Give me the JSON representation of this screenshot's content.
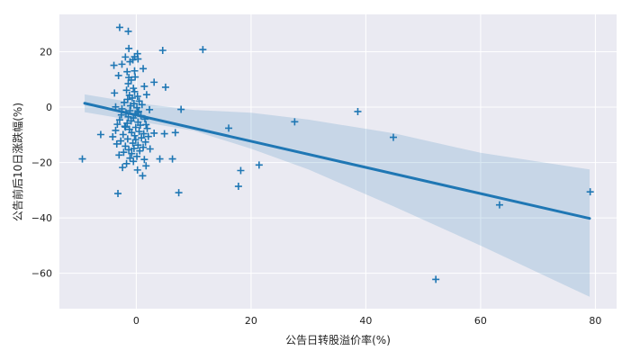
{
  "chart_data": {
    "type": "scatter",
    "title": "",
    "xlabel": "公告日转股溢价率(%)",
    "ylabel": "公告前后10日涨跌幅(%)",
    "xlim": [
      -13.4,
      83.7
    ],
    "ylim": [
      -72.8,
      33.5
    ],
    "xticks": [
      0,
      20,
      40,
      60,
      80
    ],
    "yticks": [
      20,
      0,
      -20,
      -40,
      -60
    ],
    "xtick_labels": [
      "0",
      "20",
      "40",
      "60",
      "80"
    ],
    "ytick_labels": [
      "20",
      "0",
      "−20",
      "−40",
      "−60"
    ],
    "grid": true,
    "background": "#eaeaf2",
    "grid_color": "#ffffff",
    "marker": "+",
    "marker_color": "#1f77b4",
    "regression": {
      "x": [
        -9,
        79
      ],
      "y": [
        1.4,
        -40.2
      ],
      "color": "#1f77b4",
      "ci_upper": [
        [
          -9,
          4.6
        ],
        [
          0,
          1.5
        ],
        [
          10,
          -1.0
        ],
        [
          20,
          -2.0
        ],
        [
          30,
          -4.5
        ],
        [
          45,
          -9.5
        ],
        [
          60,
          -16.5
        ],
        [
          79,
          -22.5
        ]
      ],
      "ci_lower": [
        [
          -9,
          -1.8
        ],
        [
          0,
          -5.0
        ],
        [
          10,
          -8.5
        ],
        [
          20,
          -15.0
        ],
        [
          30,
          -22.5
        ],
        [
          45,
          -36.0
        ],
        [
          60,
          -50.0
        ],
        [
          79,
          -68.5
        ]
      ],
      "ci_color": "#1f77b4"
    },
    "points": [
      [
        -2.9,
        28.8
      ],
      [
        -1.4,
        27.4
      ],
      [
        -1.3,
        21.2
      ],
      [
        0.2,
        19.3
      ],
      [
        -0.3,
        18.2
      ],
      [
        0.3,
        17.4
      ],
      [
        -1.9,
        18.1
      ],
      [
        -0.6,
        17.1
      ],
      [
        -1.1,
        16.4
      ],
      [
        -3.9,
        15.1
      ],
      [
        -2.5,
        15.5
      ],
      [
        -0.3,
        13.1
      ],
      [
        1.2,
        13.9
      ],
      [
        -1.6,
        12.8
      ],
      [
        -3.1,
        11.4
      ],
      [
        -1.3,
        10.7
      ],
      [
        -0.2,
        10.9
      ],
      [
        -0.9,
        9.8
      ],
      [
        -1.4,
        8.5
      ],
      [
        3.1,
        9.0
      ],
      [
        1.4,
        7.5
      ],
      [
        -0.5,
        6.8
      ],
      [
        -1.7,
        6.1
      ],
      [
        -0.3,
        5.6
      ],
      [
        -3.8,
        5.1
      ],
      [
        1.8,
        4.5
      ],
      [
        -1.2,
        4.3
      ],
      [
        0.2,
        3.9
      ],
      [
        -0.7,
        3.3
      ],
      [
        -1.5,
        2.8
      ],
      [
        0.5,
        2.2
      ],
      [
        -2.1,
        1.7
      ],
      [
        -0.4,
        1.3
      ],
      [
        1.0,
        0.9
      ],
      [
        -1.0,
        0.5
      ],
      [
        -3.6,
        0.1
      ],
      [
        0.1,
        -0.2
      ],
      [
        -2.5,
        -0.6
      ],
      [
        2.3,
        -0.9
      ],
      [
        -1.1,
        -1.3
      ],
      [
        0.4,
        -1.6
      ],
      [
        -1.8,
        -2.0
      ],
      [
        -0.2,
        -2.4
      ],
      [
        -2.6,
        -2.8
      ],
      [
        0.8,
        -3.1
      ],
      [
        -1.4,
        -3.5
      ],
      [
        -0.5,
        -3.9
      ],
      [
        1.5,
        -4.3
      ],
      [
        -2.9,
        -4.6
      ],
      [
        -0.9,
        -5.0
      ],
      [
        0.3,
        -5.4
      ],
      [
        -1.6,
        -5.8
      ],
      [
        -3.3,
        -6.2
      ],
      [
        0.7,
        -6.5
      ],
      [
        -2.0,
        -6.9
      ],
      [
        -0.1,
        -7.3
      ],
      [
        1.9,
        -7.7
      ],
      [
        -1.2,
        -8.0
      ],
      [
        -3.6,
        -8.4
      ],
      [
        0.5,
        -8.8
      ],
      [
        -0.8,
        -9.2
      ],
      [
        1.3,
        -9.6
      ],
      [
        -2.3,
        -9.9
      ],
      [
        -0.3,
        -10.3
      ],
      [
        -4.1,
        -10.7
      ],
      [
        0.9,
        -11.1
      ],
      [
        -1.5,
        -11.5
      ],
      [
        -0.1,
        -11.8
      ],
      [
        -2.7,
        -12.2
      ],
      [
        1.6,
        -12.6
      ],
      [
        -0.6,
        -13.0
      ],
      [
        -3.4,
        -13.3
      ],
      [
        0.3,
        -13.7
      ],
      [
        -1.9,
        -14.1
      ],
      [
        1.2,
        -14.5
      ],
      [
        -0.4,
        -14.9
      ],
      [
        -1.3,
        -15.4
      ],
      [
        0.6,
        -15.8
      ],
      [
        -2.2,
        -16.3
      ],
      [
        -0.8,
        -16.8
      ],
      [
        -3.0,
        -17.3
      ],
      [
        0.1,
        -17.8
      ],
      [
        -1.1,
        -18.4
      ],
      [
        1.4,
        -18.9
      ],
      [
        -0.5,
        -19.6
      ],
      [
        -2.4,
        -21.8
      ],
      [
        1.7,
        -21.2
      ],
      [
        0.2,
        -22.7
      ],
      [
        -1.7,
        -20.4
      ],
      [
        1.1,
        -24.8
      ],
      [
        -3.2,
        -31.2
      ],
      [
        2.1,
        -10.6
      ],
      [
        2.4,
        -15.1
      ],
      [
        1.7,
        -6.3
      ],
      [
        0.3,
        -1.9
      ],
      [
        -1.9,
        -7.2
      ],
      [
        -9.4,
        -18.7
      ],
      [
        -6.2,
        -9.9
      ],
      [
        4.6,
        20.5
      ],
      [
        11.6,
        20.8
      ],
      [
        5.1,
        7.2
      ],
      [
        7.8,
        -0.8
      ],
      [
        6.8,
        -9.2
      ],
      [
        4.9,
        -9.6
      ],
      [
        3.1,
        -9.4
      ],
      [
        6.3,
        -18.7
      ],
      [
        4.1,
        -18.7
      ],
      [
        7.4,
        -30.9
      ],
      [
        16.1,
        -7.6
      ],
      [
        18.2,
        -22.9
      ],
      [
        17.8,
        -28.6
      ],
      [
        21.4,
        -20.9
      ],
      [
        27.6,
        -5.3
      ],
      [
        38.6,
        -1.6
      ],
      [
        44.8,
        -10.9
      ],
      [
        52.2,
        -62.2
      ],
      [
        63.3,
        -35.3
      ],
      [
        79.1,
        -30.6
      ]
    ]
  }
}
